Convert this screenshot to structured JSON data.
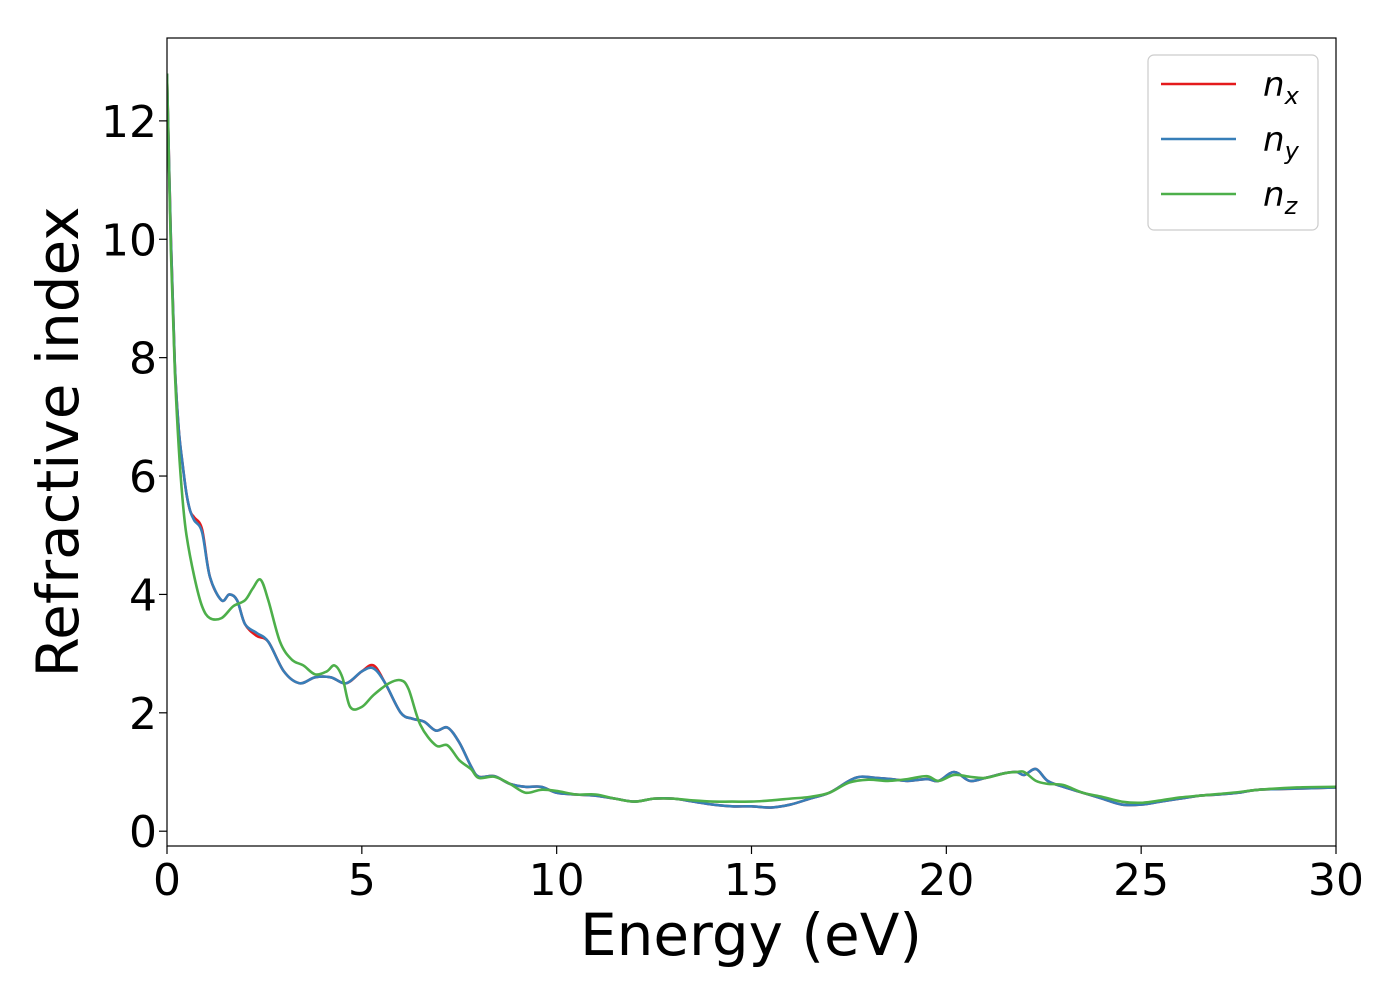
{
  "chart_data": {
    "type": "line",
    "xlabel": "Energy (eV)",
    "ylabel": "Refractive index",
    "xlim": [
      0,
      30
    ],
    "ylim": [
      -0.25,
      13.4
    ],
    "xticks": [
      0,
      5,
      10,
      15,
      20,
      25,
      30
    ],
    "yticks": [
      0,
      2,
      4,
      6,
      8,
      10,
      12
    ],
    "grid": false,
    "legend_position": "top-right",
    "series": [
      {
        "name": "n_x",
        "legend_base": "n",
        "legend_sub": "x",
        "color": "#e41a1c",
        "x": [
          0,
          0.1,
          0.2,
          0.3,
          0.4,
          0.5,
          0.6,
          0.7,
          0.9,
          1.1,
          1.4,
          1.6,
          1.8,
          2.0,
          2.3,
          2.6,
          3.0,
          3.4,
          3.8,
          4.2,
          4.6,
          5.0,
          5.3,
          5.6,
          6.0,
          6.3,
          6.6,
          6.9,
          7.2,
          7.5,
          7.8,
          8.0,
          8.4,
          8.8,
          9.2,
          9.6,
          10.0,
          10.5,
          11.0,
          11.5,
          12.0,
          12.5,
          13.0,
          13.5,
          14.0,
          14.5,
          15.0,
          15.5,
          16.0,
          16.5,
          17.0,
          17.5,
          17.8,
          18.2,
          18.6,
          19.0,
          19.5,
          19.8,
          20.2,
          20.6,
          21.0,
          21.5,
          21.8,
          22.0,
          22.3,
          22.6,
          23.0,
          23.5,
          24.0,
          24.5,
          25.0,
          25.5,
          26.0,
          26.5,
          27.0,
          27.5,
          28.0,
          29.0,
          30.0
        ],
        "y": [
          12.8,
          10.0,
          7.9,
          6.8,
          6.2,
          5.7,
          5.4,
          5.3,
          5.1,
          4.3,
          3.9,
          4.0,
          3.9,
          3.5,
          3.3,
          3.2,
          2.7,
          2.5,
          2.6,
          2.6,
          2.5,
          2.7,
          2.8,
          2.5,
          2.0,
          1.9,
          1.85,
          1.7,
          1.75,
          1.5,
          1.1,
          0.92,
          0.93,
          0.8,
          0.75,
          0.75,
          0.65,
          0.62,
          0.6,
          0.55,
          0.5,
          0.55,
          0.55,
          0.5,
          0.45,
          0.42,
          0.42,
          0.4,
          0.45,
          0.55,
          0.65,
          0.85,
          0.92,
          0.9,
          0.88,
          0.85,
          0.88,
          0.85,
          1.0,
          0.85,
          0.9,
          0.98,
          1.0,
          0.95,
          1.05,
          0.85,
          0.75,
          0.65,
          0.55,
          0.45,
          0.45,
          0.5,
          0.55,
          0.6,
          0.62,
          0.65,
          0.7,
          0.72,
          0.74
        ]
      },
      {
        "name": "n_y",
        "legend_base": "n",
        "legend_sub": "y",
        "color": "#377eb8",
        "x": [
          0,
          0.1,
          0.2,
          0.3,
          0.4,
          0.5,
          0.6,
          0.7,
          0.9,
          1.1,
          1.4,
          1.6,
          1.8,
          2.0,
          2.3,
          2.6,
          3.0,
          3.4,
          3.8,
          4.2,
          4.6,
          5.0,
          5.3,
          5.6,
          6.0,
          6.3,
          6.6,
          6.9,
          7.2,
          7.5,
          7.8,
          8.0,
          8.4,
          8.8,
          9.2,
          9.6,
          10.0,
          10.5,
          11.0,
          11.5,
          12.0,
          12.5,
          13.0,
          13.5,
          14.0,
          14.5,
          15.0,
          15.5,
          16.0,
          16.5,
          17.0,
          17.5,
          17.8,
          18.2,
          18.6,
          19.0,
          19.5,
          19.8,
          20.2,
          20.6,
          21.0,
          21.5,
          21.8,
          22.0,
          22.3,
          22.6,
          23.0,
          23.5,
          24.0,
          24.5,
          25.0,
          25.5,
          26.0,
          26.5,
          27.0,
          27.5,
          28.0,
          29.0,
          30.0
        ],
        "y": [
          12.8,
          10.0,
          7.9,
          6.8,
          6.2,
          5.7,
          5.4,
          5.25,
          5.05,
          4.3,
          3.9,
          4.0,
          3.9,
          3.5,
          3.35,
          3.2,
          2.7,
          2.5,
          2.6,
          2.6,
          2.5,
          2.7,
          2.75,
          2.5,
          2.0,
          1.9,
          1.85,
          1.7,
          1.75,
          1.5,
          1.1,
          0.92,
          0.93,
          0.8,
          0.75,
          0.75,
          0.65,
          0.62,
          0.6,
          0.55,
          0.5,
          0.55,
          0.55,
          0.5,
          0.45,
          0.42,
          0.42,
          0.4,
          0.45,
          0.55,
          0.65,
          0.85,
          0.92,
          0.9,
          0.88,
          0.85,
          0.88,
          0.85,
          1.0,
          0.85,
          0.9,
          0.98,
          1.0,
          0.95,
          1.05,
          0.85,
          0.75,
          0.65,
          0.55,
          0.45,
          0.45,
          0.5,
          0.55,
          0.6,
          0.62,
          0.65,
          0.7,
          0.72,
          0.74
        ]
      },
      {
        "name": "n_z",
        "legend_base": "n",
        "legend_sub": "z",
        "color": "#4daf4a",
        "x": [
          0,
          0.1,
          0.2,
          0.3,
          0.4,
          0.5,
          0.7,
          0.9,
          1.1,
          1.4,
          1.7,
          2.0,
          2.2,
          2.4,
          2.6,
          2.9,
          3.2,
          3.5,
          3.8,
          4.1,
          4.3,
          4.5,
          4.7,
          5.0,
          5.3,
          5.7,
          6.0,
          6.2,
          6.5,
          6.9,
          7.2,
          7.5,
          7.8,
          8.0,
          8.4,
          8.8,
          9.2,
          9.6,
          10.0,
          10.5,
          11.0,
          11.5,
          12.0,
          12.5,
          13.0,
          13.5,
          14.0,
          14.5,
          15.0,
          15.5,
          16.0,
          16.5,
          17.0,
          17.5,
          18.0,
          18.5,
          19.0,
          19.5,
          19.8,
          20.2,
          20.6,
          21.0,
          21.5,
          21.8,
          22.0,
          22.3,
          22.6,
          23.0,
          23.5,
          24.0,
          24.5,
          25.0,
          25.5,
          26.0,
          26.5,
          27.0,
          27.5,
          28.0,
          29.0,
          30.0
        ],
        "y": [
          12.8,
          9.8,
          7.8,
          6.5,
          5.6,
          5.0,
          4.3,
          3.8,
          3.6,
          3.6,
          3.8,
          3.9,
          4.1,
          4.25,
          3.9,
          3.2,
          2.9,
          2.8,
          2.65,
          2.7,
          2.8,
          2.6,
          2.1,
          2.1,
          2.3,
          2.5,
          2.55,
          2.4,
          1.8,
          1.45,
          1.45,
          1.2,
          1.05,
          0.9,
          0.92,
          0.8,
          0.65,
          0.7,
          0.68,
          0.62,
          0.62,
          0.55,
          0.5,
          0.55,
          0.55,
          0.52,
          0.5,
          0.5,
          0.5,
          0.52,
          0.55,
          0.58,
          0.65,
          0.82,
          0.87,
          0.85,
          0.88,
          0.93,
          0.85,
          0.95,
          0.92,
          0.9,
          0.98,
          1.0,
          1.0,
          0.85,
          0.8,
          0.78,
          0.65,
          0.58,
          0.5,
          0.48,
          0.52,
          0.57,
          0.6,
          0.63,
          0.66,
          0.7,
          0.74,
          0.75
        ]
      }
    ]
  }
}
